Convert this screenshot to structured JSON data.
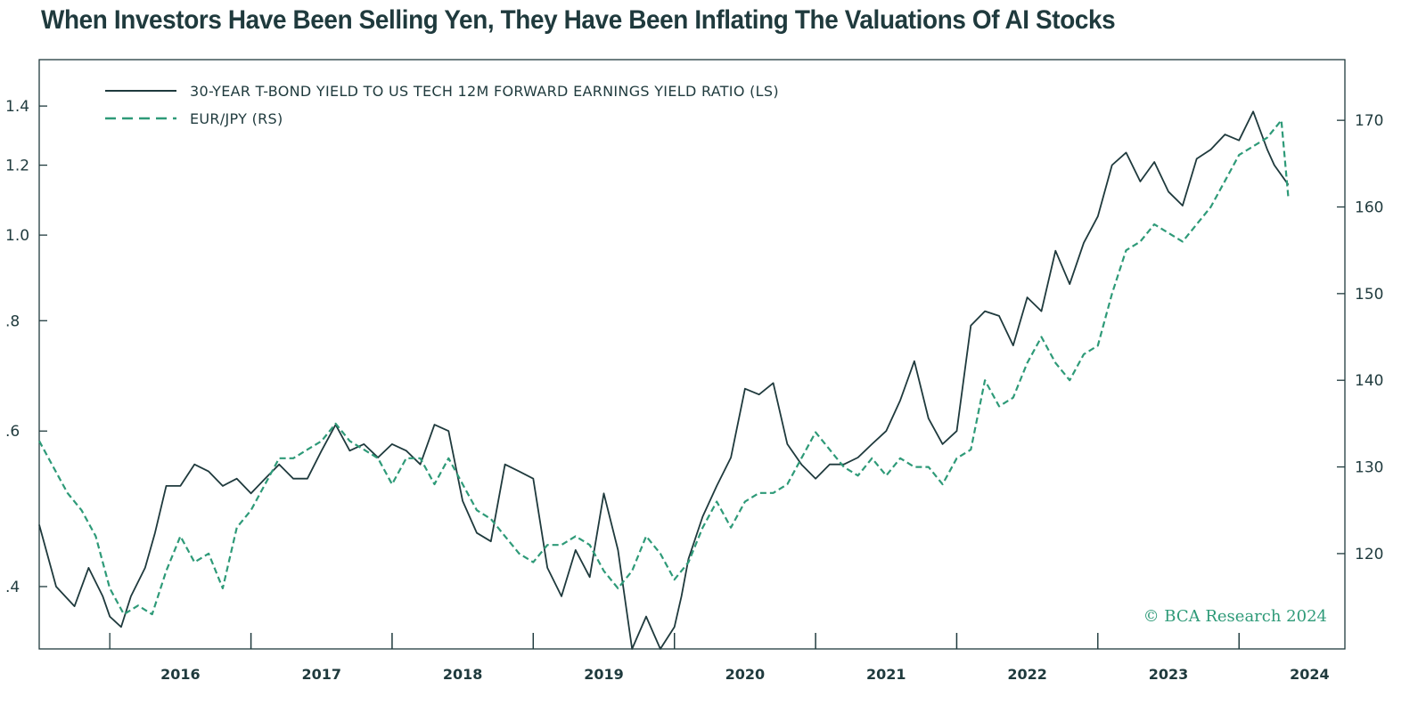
{
  "chart_data": {
    "type": "line",
    "title": "When Investors Have Been Selling Yen, They Have Been Inflating The Valuations Of AI Stocks",
    "credit": "© BCA Research 2024",
    "x_ticks": [
      "2016",
      "2017",
      "2018",
      "2019",
      "2020",
      "2021",
      "2022",
      "2023",
      "2024"
    ],
    "x_range": [
      2015.5,
      2024.75
    ],
    "y_left": {
      "scale": "log",
      "range": [
        0.34,
        1.58
      ],
      "ticks": [
        1.4,
        1.2,
        1.0,
        0.8,
        0.6,
        0.4
      ],
      "tick_labels": [
        "1.4",
        "1.2",
        "1.0",
        ".8",
        ".6",
        ".4"
      ]
    },
    "y_right": {
      "scale": "linear",
      "range": [
        109,
        177
      ],
      "ticks": [
        170,
        160,
        150,
        140,
        130,
        120
      ],
      "tick_labels": [
        "170",
        "160",
        "150",
        "140",
        "130",
        "120"
      ]
    },
    "grid": false,
    "legend_position": "top-left",
    "series": [
      {
        "name": "30-YEAR T-BOND YIELD TO US TECH 12M FORWARD EARNINGS YIELD RATIO (LS)",
        "axis": "left",
        "color": "#1f3a3d",
        "style": "solid",
        "x": [
          2015.5,
          2015.62,
          2015.75,
          2015.85,
          2015.95,
          2016.0,
          2016.08,
          2016.15,
          2016.25,
          2016.32,
          2016.4,
          2016.5,
          2016.6,
          2016.7,
          2016.8,
          2016.9,
          2017.0,
          2017.1,
          2017.2,
          2017.3,
          2017.4,
          2017.5,
          2017.6,
          2017.7,
          2017.8,
          2017.9,
          2018.0,
          2018.1,
          2018.2,
          2018.3,
          2018.4,
          2018.5,
          2018.6,
          2018.7,
          2018.8,
          2018.9,
          2019.0,
          2019.1,
          2019.2,
          2019.3,
          2019.4,
          2019.5,
          2019.6,
          2019.7,
          2019.8,
          2019.9,
          2020.0,
          2020.05,
          2020.1,
          2020.2,
          2020.3,
          2020.4,
          2020.5,
          2020.6,
          2020.7,
          2020.8,
          2020.9,
          2021.0,
          2021.1,
          2021.2,
          2021.3,
          2021.4,
          2021.5,
          2021.6,
          2021.7,
          2021.8,
          2021.9,
          2022.0,
          2022.1,
          2022.2,
          2022.3,
          2022.4,
          2022.5,
          2022.6,
          2022.7,
          2022.8,
          2022.9,
          2023.0,
          2023.1,
          2023.2,
          2023.3,
          2023.4,
          2023.5,
          2023.6,
          2023.7,
          2023.8,
          2023.9,
          2024.0,
          2024.1,
          2024.2,
          2024.25,
          2024.35
        ],
        "values": [
          0.47,
          0.4,
          0.38,
          0.42,
          0.39,
          0.37,
          0.36,
          0.39,
          0.42,
          0.46,
          0.52,
          0.52,
          0.55,
          0.54,
          0.52,
          0.53,
          0.51,
          0.53,
          0.55,
          0.53,
          0.53,
          0.57,
          0.61,
          0.57,
          0.58,
          0.56,
          0.58,
          0.57,
          0.55,
          0.61,
          0.6,
          0.5,
          0.46,
          0.45,
          0.55,
          0.54,
          0.53,
          0.42,
          0.39,
          0.44,
          0.41,
          0.51,
          0.44,
          0.34,
          0.37,
          0.34,
          0.36,
          0.39,
          0.43,
          0.48,
          0.52,
          0.56,
          0.67,
          0.66,
          0.68,
          0.58,
          0.55,
          0.53,
          0.55,
          0.55,
          0.56,
          0.58,
          0.6,
          0.65,
          0.72,
          0.62,
          0.58,
          0.6,
          0.79,
          0.82,
          0.81,
          0.75,
          0.85,
          0.82,
          0.96,
          0.88,
          0.98,
          1.05,
          1.2,
          1.24,
          1.15,
          1.21,
          1.12,
          1.08,
          1.22,
          1.25,
          1.3,
          1.28,
          1.38,
          1.25,
          1.2,
          1.14
        ]
      },
      {
        "name": "EUR/JPY (RS)",
        "axis": "right",
        "color": "#2e9a78",
        "style": "dashed",
        "x": [
          2015.5,
          2015.6,
          2015.7,
          2015.8,
          2015.9,
          2016.0,
          2016.1,
          2016.2,
          2016.3,
          2016.4,
          2016.5,
          2016.6,
          2016.7,
          2016.8,
          2016.9,
          2017.0,
          2017.1,
          2017.2,
          2017.3,
          2017.4,
          2017.5,
          2017.6,
          2017.7,
          2017.8,
          2017.9,
          2018.0,
          2018.1,
          2018.2,
          2018.3,
          2018.4,
          2018.5,
          2018.6,
          2018.7,
          2018.8,
          2018.9,
          2019.0,
          2019.1,
          2019.2,
          2019.3,
          2019.4,
          2019.5,
          2019.6,
          2019.7,
          2019.8,
          2019.9,
          2020.0,
          2020.1,
          2020.2,
          2020.3,
          2020.4,
          2020.5,
          2020.6,
          2020.7,
          2020.8,
          2020.9,
          2021.0,
          2021.1,
          2021.2,
          2021.3,
          2021.4,
          2021.5,
          2021.6,
          2021.7,
          2021.8,
          2021.9,
          2022.0,
          2022.1,
          2022.2,
          2022.3,
          2022.4,
          2022.5,
          2022.6,
          2022.7,
          2022.8,
          2022.9,
          2023.0,
          2023.1,
          2023.2,
          2023.3,
          2023.4,
          2023.5,
          2023.6,
          2023.7,
          2023.8,
          2023.9,
          2024.0,
          2024.1,
          2024.2,
          2024.3,
          2024.35
        ],
        "values": [
          133,
          130,
          127,
          125,
          122,
          116,
          113,
          114,
          113,
          118,
          122,
          119,
          120,
          116,
          123,
          125,
          128,
          131,
          131,
          132,
          133,
          135,
          133,
          132,
          131,
          128,
          131,
          131,
          128,
          131,
          128,
          125,
          124,
          122,
          120,
          119,
          121,
          121,
          122,
          121,
          118,
          116,
          118,
          122,
          120,
          117,
          119,
          123,
          126,
          123,
          126,
          127,
          127,
          128,
          131,
          134,
          132,
          130,
          129,
          131,
          129,
          131,
          130,
          130,
          128,
          131,
          132,
          140,
          137,
          138,
          142,
          145,
          142,
          140,
          143,
          144,
          150,
          155,
          156,
          158,
          157,
          156,
          158,
          160,
          163,
          166,
          167,
          168,
          170,
          161
        ]
      }
    ]
  }
}
